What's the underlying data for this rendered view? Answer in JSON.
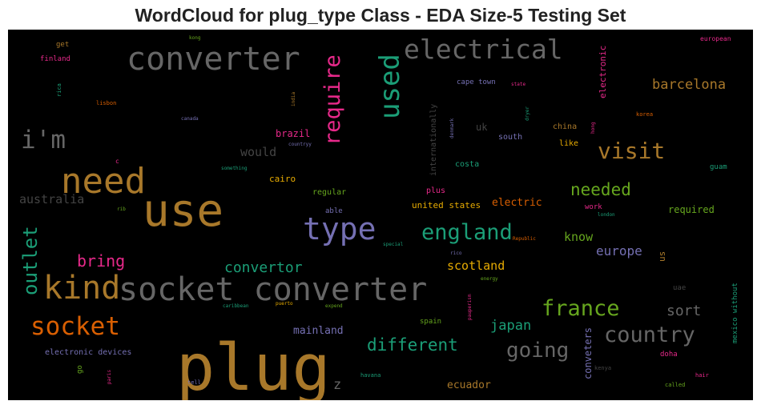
{
  "chart_data": {
    "type": "wordcloud",
    "title": "WordCloud for plug_type Class - EDA Size-5 Testing Set",
    "background": "#000000",
    "words": [
      {
        "text": "plug",
        "weight": 100,
        "color": "#a8782a"
      },
      {
        "text": "use",
        "weight": 68,
        "color": "#a8782a"
      },
      {
        "text": "socket converter",
        "weight": 50,
        "color": "#666666"
      },
      {
        "text": "converter",
        "weight": 50,
        "color": "#666666"
      },
      {
        "text": "need",
        "weight": 56,
        "color": "#a8782a"
      },
      {
        "text": "kind",
        "weight": 49,
        "color": "#a8782a"
      },
      {
        "text": "type",
        "weight": 46,
        "color": "#7570b3"
      },
      {
        "text": "used",
        "weight": 44,
        "color": "#1b9e77"
      },
      {
        "text": "electrical",
        "weight": 41,
        "color": "#666666"
      },
      {
        "text": "socket",
        "weight": 39,
        "color": "#d95f02"
      },
      {
        "text": "i'm",
        "weight": 38,
        "color": "#666666"
      },
      {
        "text": "require",
        "weight": 35,
        "color": "#e7298a"
      },
      {
        "text": "outlet",
        "weight": 32,
        "color": "#1b9e77"
      },
      {
        "text": "visit",
        "weight": 34,
        "color": "#a8782a"
      },
      {
        "text": "england",
        "weight": 31,
        "color": "#1b9e77"
      },
      {
        "text": "france",
        "weight": 31,
        "color": "#66a61e"
      },
      {
        "text": "country",
        "weight": 31,
        "color": "#666666"
      },
      {
        "text": "going",
        "weight": 30,
        "color": "#666666"
      },
      {
        "text": "different",
        "weight": 24,
        "color": "#1b9e77"
      },
      {
        "text": "needed",
        "weight": 24,
        "color": "#66a61e"
      },
      {
        "text": "bring",
        "weight": 22,
        "color": "#e7298a"
      },
      {
        "text": "convertor",
        "weight": 20,
        "color": "#1b9e77"
      },
      {
        "text": "barcelona",
        "weight": 19,
        "color": "#a8782a"
      },
      {
        "text": "sort",
        "weight": 20,
        "color": "#666666"
      },
      {
        "text": "japan",
        "weight": 19,
        "color": "#1b9e77"
      },
      {
        "text": "scotland",
        "weight": 16,
        "color": "#e6ab02"
      },
      {
        "text": "europe",
        "weight": 16,
        "color": "#7570b3"
      },
      {
        "text": "know",
        "weight": 15,
        "color": "#66a61e"
      },
      {
        "text": "australia",
        "weight": 15,
        "color": "#444444"
      },
      {
        "text": "would",
        "weight": 15,
        "color": "#444444"
      },
      {
        "text": "z",
        "weight": 17,
        "color": "#666666"
      },
      {
        "text": "ecuador",
        "weight": 13,
        "color": "#a8782a"
      },
      {
        "text": "mainland",
        "weight": 13,
        "color": "#7570b3"
      },
      {
        "text": "electric",
        "weight": 13,
        "color": "#d95f02"
      },
      {
        "text": "required",
        "weight": 12,
        "color": "#66a61e"
      },
      {
        "text": "brazil",
        "weight": 12,
        "color": "#e7298a"
      },
      {
        "text": "uk",
        "weight": 12,
        "color": "#444444"
      },
      {
        "text": "cairo",
        "weight": 11,
        "color": "#e6ab02"
      },
      {
        "text": "united states",
        "weight": 11,
        "color": "#e6ab02"
      },
      {
        "text": "conveters",
        "weight": 12,
        "color": "#7570b3"
      },
      {
        "text": "internationally",
        "weight": 10,
        "color": "#444444"
      },
      {
        "text": "electronic",
        "weight": 11,
        "color": "#e7298a"
      },
      {
        "text": "electronic devices",
        "weight": 10,
        "color": "#7570b3"
      },
      {
        "text": "mexico without",
        "weight": 9,
        "color": "#1b9e77"
      },
      {
        "text": "cape town",
        "weight": 9,
        "color": "#7570b3"
      },
      {
        "text": "costa",
        "weight": 10,
        "color": "#1b9e77"
      },
      {
        "text": "regular",
        "weight": 10,
        "color": "#66a61e"
      },
      {
        "text": "china",
        "weight": 10,
        "color": "#a8782a"
      },
      {
        "text": "like",
        "weight": 10,
        "color": "#e6ab02"
      },
      {
        "text": "south",
        "weight": 10,
        "color": "#7570b3"
      },
      {
        "text": "us",
        "weight": 11,
        "color": "#a8782a"
      },
      {
        "text": "plus",
        "weight": 10,
        "color": "#e7298a"
      },
      {
        "text": "spain",
        "weight": 9,
        "color": "#66a61e"
      },
      {
        "text": "doha",
        "weight": 9,
        "color": "#e7298a"
      },
      {
        "text": "uae",
        "weight": 9,
        "color": "#444444"
      },
      {
        "text": "guam",
        "weight": 9,
        "color": "#1b9e77"
      },
      {
        "text": "able",
        "weight": 9,
        "color": "#7570b3"
      },
      {
        "text": "work",
        "weight": 9,
        "color": "#e7298a"
      },
      {
        "text": "finland",
        "weight": 9,
        "color": "#e7298a"
      },
      {
        "text": "get",
        "weight": 9,
        "color": "#a8782a"
      },
      {
        "text": "go",
        "weight": 9,
        "color": "#66a61e"
      },
      {
        "text": "european",
        "weight": 8,
        "color": "#e7298a"
      },
      {
        "text": "korea",
        "weight": 7,
        "color": "#d95f02"
      },
      {
        "text": "hair",
        "weight": 7,
        "color": "#e7298a"
      },
      {
        "text": "kenya",
        "weight": 7,
        "color": "#444444"
      },
      {
        "text": "called",
        "weight": 7,
        "color": "#66a61e"
      },
      {
        "text": "havana",
        "weight": 7,
        "color": "#1b9e77"
      },
      {
        "text": "tell",
        "weight": 7,
        "color": "#7570b3"
      },
      {
        "text": "paris",
        "weight": 6,
        "color": "#e7298a"
      },
      {
        "text": "c",
        "weight": 8,
        "color": "#e7298a"
      },
      {
        "text": "rica",
        "weight": 7,
        "color": "#1b9e77"
      },
      {
        "text": "lisbon",
        "weight": 7,
        "color": "#d95f02"
      },
      {
        "text": "canada",
        "weight": 6,
        "color": "#7570b3"
      },
      {
        "text": "kong",
        "weight": 6,
        "color": "#66a61e"
      },
      {
        "text": "india",
        "weight": 6,
        "color": "#a8782a"
      },
      {
        "text": "countryy",
        "weight": 6,
        "color": "#7570b3"
      },
      {
        "text": "denmark",
        "weight": 6,
        "color": "#7570b3"
      },
      {
        "text": "dryer",
        "weight": 6,
        "color": "#1b9e77"
      },
      {
        "text": "hong",
        "weight": 6,
        "color": "#e7298a"
      },
      {
        "text": "state",
        "weight": 6,
        "color": "#e7298a"
      },
      {
        "text": "something",
        "weight": 6,
        "color": "#1b9e77"
      },
      {
        "text": "rib",
        "weight": 6,
        "color": "#66a61e"
      },
      {
        "text": "special",
        "weight": 6,
        "color": "#1b9e77"
      },
      {
        "text": "Republic",
        "weight": 6,
        "color": "#d95f02"
      },
      {
        "text": "rico",
        "weight": 6,
        "color": "#7570b3"
      },
      {
        "text": "energy",
        "weight": 6,
        "color": "#66a61e"
      },
      {
        "text": "london",
        "weight": 6,
        "color": "#1b9e77"
      },
      {
        "text": "caribbean",
        "weight": 6,
        "color": "#1b9e77"
      },
      {
        "text": "puerto",
        "weight": 6,
        "color": "#e6ab02"
      },
      {
        "text": "expend",
        "weight": 6,
        "color": "#66a61e"
      },
      {
        "text": "pauperism",
        "weight": 6,
        "color": "#e7298a"
      }
    ]
  }
}
